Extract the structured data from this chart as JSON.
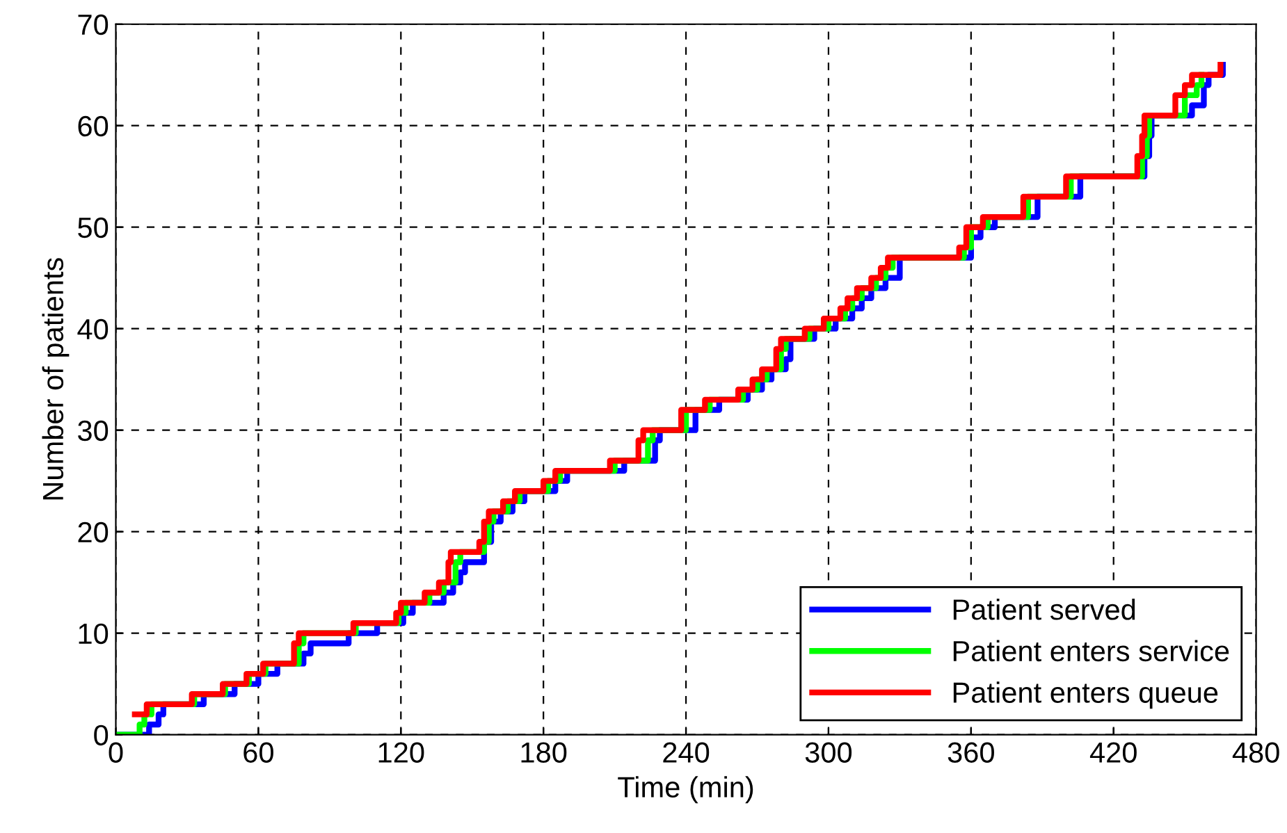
{
  "chart_data": {
    "type": "step",
    "xlabel": "Time (min)",
    "ylabel": "Number of patients",
    "xlim": [
      0,
      480
    ],
    "ylim": [
      0,
      70
    ],
    "xticks": [
      0,
      60,
      120,
      180,
      240,
      300,
      360,
      420,
      480
    ],
    "yticks": [
      0,
      10,
      20,
      30,
      40,
      50,
      60,
      70
    ],
    "grid": true,
    "legend": "bottom right",
    "line_style": "solid",
    "marker": "none",
    "series": [
      {
        "name": "Patient served",
        "color": "#0000ff",
        "x": [
          0,
          14,
          18,
          20,
          37,
          50,
          60,
          68,
          79,
          82,
          98,
          110,
          121,
          125,
          138,
          142,
          145,
          147,
          155,
          158,
          162,
          167,
          172,
          185,
          190,
          214,
          227,
          229,
          244,
          254,
          266,
          272,
          276,
          282,
          284,
          294,
          303,
          310,
          314,
          318,
          324,
          330,
          360,
          364,
          370,
          388,
          406,
          433,
          435,
          436,
          453,
          458,
          460,
          466
        ],
        "values": [
          0,
          1,
          2,
          3,
          4,
          5,
          6,
          7,
          8,
          9,
          10,
          11,
          12,
          13,
          14,
          15,
          16,
          17,
          19,
          21,
          22,
          23,
          24,
          25,
          26,
          27,
          29,
          30,
          32,
          33,
          34,
          35,
          36,
          37,
          39,
          40,
          41,
          42,
          43,
          44,
          45,
          47,
          49,
          50,
          51,
          53,
          55,
          57,
          59,
          61,
          62,
          64,
          65,
          66
        ]
      },
      {
        "name": "Patient enters service",
        "color": "#00ff00",
        "x": [
          0,
          10,
          12,
          15,
          33,
          46,
          56,
          63,
          77,
          79,
          101,
          119,
          122,
          132,
          138,
          143,
          145,
          155,
          157,
          159,
          165,
          170,
          182,
          187,
          210,
          224,
          226,
          240,
          250,
          264,
          270,
          274,
          280,
          282,
          292,
          300,
          307,
          310,
          314,
          320,
          324,
          327,
          357,
          360,
          367,
          384,
          402,
          432,
          434,
          435,
          450,
          455,
          457
        ],
        "values": [
          0,
          1,
          2,
          3,
          4,
          5,
          6,
          7,
          9,
          10,
          11,
          12,
          13,
          14,
          15,
          17,
          18,
          19,
          21,
          22,
          23,
          24,
          25,
          26,
          27,
          29,
          30,
          32,
          33,
          34,
          35,
          36,
          38,
          39,
          40,
          41,
          42,
          43,
          44,
          45,
          46,
          47,
          48,
          50,
          51,
          53,
          55,
          57,
          59,
          61,
          63,
          64,
          65
        ]
      },
      {
        "name": "Patient enters queue",
        "color": "#ff0000",
        "x": [
          8,
          13,
          32,
          45,
          55,
          62,
          75,
          77,
          100,
          118,
          120,
          130,
          136,
          140,
          141,
          153,
          155,
          157,
          163,
          168,
          180,
          185,
          208,
          220,
          222,
          238,
          248,
          262,
          268,
          272,
          278,
          280,
          290,
          298,
          305,
          308,
          312,
          318,
          322,
          325,
          355,
          358,
          365,
          382,
          400,
          430,
          432,
          433,
          446,
          450,
          453,
          465
        ],
        "values": [
          2,
          3,
          4,
          5,
          6,
          7,
          9,
          10,
          11,
          12,
          13,
          14,
          15,
          17,
          18,
          19,
          21,
          22,
          23,
          24,
          25,
          26,
          27,
          29,
          30,
          32,
          33,
          34,
          35,
          36,
          38,
          39,
          40,
          41,
          42,
          43,
          44,
          45,
          46,
          47,
          48,
          50,
          51,
          53,
          55,
          57,
          59,
          61,
          63,
          64,
          65,
          66
        ]
      }
    ]
  }
}
